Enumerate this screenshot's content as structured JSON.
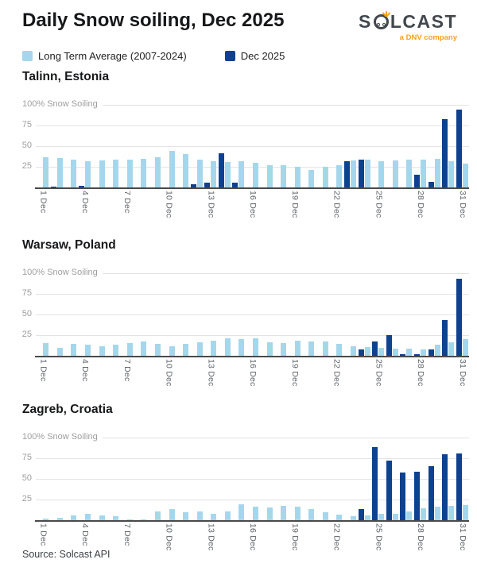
{
  "header": {
    "title": "Daily Snow soiling, Dec 2025",
    "logo": {
      "text": "SOLCAST",
      "subtext": "a DNV company",
      "accent_color": "#f7a11a",
      "text_color": "#42484d"
    }
  },
  "legend": {
    "items": [
      {
        "label": "Long Term Average (2007-2024)",
        "color": "#a5d7ec"
      },
      {
        "label": "Dec 2025",
        "color": "#0e418f"
      }
    ]
  },
  "axis": {
    "y_top_label": "100% Snow Soiling",
    "y_ticks": [
      25,
      50,
      75
    ],
    "ylim": [
      0,
      100
    ],
    "x_tick_days": [
      1,
      4,
      7,
      10,
      13,
      16,
      19,
      22,
      25,
      28,
      31
    ],
    "x_tick_labels": [
      "1 Dec",
      "4 Dec",
      "7 Dec",
      "10 Dec",
      "13 Dec",
      "16 Dec",
      "19 Dec",
      "22 Dec",
      "25 Dec",
      "28 Dec",
      "31 Dec"
    ]
  },
  "chart_data": [
    {
      "type": "bar",
      "title": "Talinn, Estonia",
      "categories": [
        1,
        2,
        3,
        4,
        5,
        6,
        7,
        8,
        9,
        10,
        11,
        12,
        13,
        14,
        15,
        16,
        17,
        18,
        19,
        20,
        21,
        22,
        23,
        24,
        25,
        26,
        27,
        28,
        29,
        30,
        31
      ],
      "ylim": [
        0,
        100
      ],
      "series": [
        {
          "name": "Long Term Average (2007-2024)",
          "color": "#a5d7ec",
          "values": [
            37,
            36,
            34,
            32,
            33,
            34,
            34,
            35,
            37,
            44,
            40,
            34,
            32,
            31,
            32,
            30,
            27,
            27,
            25,
            21,
            25,
            27,
            33,
            34,
            32,
            33,
            34,
            34,
            35,
            32,
            29
          ]
        },
        {
          "name": "Dec 2025",
          "color": "#0e418f",
          "values": [
            0,
            1,
            0,
            2,
            0,
            0,
            0,
            0,
            0,
            0,
            0,
            4,
            6,
            41,
            6,
            0,
            0,
            0,
            0,
            0,
            0,
            0,
            32,
            34,
            0,
            0,
            0,
            15,
            7,
            83,
            94
          ]
        }
      ]
    },
    {
      "type": "bar",
      "title": "Warsaw, Poland",
      "categories": [
        1,
        2,
        3,
        4,
        5,
        6,
        7,
        8,
        9,
        10,
        11,
        12,
        13,
        14,
        15,
        16,
        17,
        18,
        19,
        20,
        21,
        22,
        23,
        24,
        25,
        26,
        27,
        28,
        29,
        30,
        31
      ],
      "ylim": [
        0,
        100
      ],
      "series": [
        {
          "name": "Long Term Average (2007-2024)",
          "color": "#a5d7ec",
          "values": [
            15,
            10,
            14,
            13,
            12,
            13,
            15,
            17,
            14,
            12,
            14,
            16,
            18,
            21,
            20,
            21,
            16,
            15,
            18,
            17,
            17,
            14,
            12,
            11,
            10,
            9,
            9,
            8,
            13,
            16,
            20
          ]
        },
        {
          "name": "Dec 2025",
          "color": "#0e418f",
          "values": [
            0,
            0,
            0,
            0,
            0,
            0,
            0,
            0,
            0,
            0,
            0,
            0,
            0,
            0,
            0,
            0,
            0,
            0,
            0,
            0,
            0,
            0,
            0,
            8,
            17,
            25,
            2,
            2,
            8,
            43,
            93
          ]
        }
      ]
    },
    {
      "type": "bar",
      "title": "Zagreb, Croatia",
      "categories": [
        1,
        2,
        3,
        4,
        5,
        6,
        7,
        8,
        9,
        10,
        11,
        12,
        13,
        14,
        15,
        16,
        17,
        18,
        19,
        20,
        21,
        22,
        23,
        24,
        25,
        26,
        27,
        28,
        29,
        30,
        31
      ],
      "ylim": [
        0,
        100
      ],
      "series": [
        {
          "name": "Long Term Average (2007-2024)",
          "color": "#a5d7ec",
          "values": [
            2,
            3,
            6,
            8,
            6,
            5,
            1,
            1,
            11,
            13,
            10,
            11,
            8,
            11,
            19,
            16,
            15,
            17,
            16,
            13,
            10,
            7,
            5,
            6,
            8,
            8,
            11,
            14,
            16,
            17,
            18
          ]
        },
        {
          "name": "Dec 2025",
          "color": "#0e418f",
          "values": [
            0,
            0,
            0,
            0,
            0,
            0,
            0,
            0,
            0,
            0,
            0,
            0,
            0,
            0,
            0,
            0,
            0,
            0,
            0,
            0,
            0,
            0,
            0,
            13,
            88,
            72,
            58,
            59,
            65,
            80,
            81
          ]
        }
      ]
    }
  ],
  "footer": {
    "source": "Source: Solcast API"
  }
}
